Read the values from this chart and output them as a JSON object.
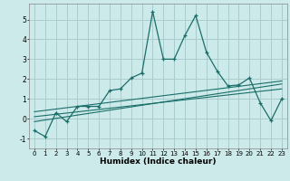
{
  "title": "",
  "xlabel": "Humidex (Indice chaleur)",
  "ylabel": "",
  "bg_color": "#cceaea",
  "line_color": "#1a6e6a",
  "grid_color": "#aacccc",
  "xlim": [
    -0.5,
    23.5
  ],
  "ylim": [
    -1.5,
    5.8
  ],
  "yticks": [
    -1,
    0,
    1,
    2,
    3,
    4,
    5
  ],
  "xticks": [
    0,
    1,
    2,
    3,
    4,
    5,
    6,
    7,
    8,
    9,
    10,
    11,
    12,
    13,
    14,
    15,
    16,
    17,
    18,
    19,
    20,
    21,
    22,
    23
  ],
  "main_x": [
    0,
    1,
    2,
    3,
    4,
    5,
    6,
    7,
    8,
    9,
    10,
    11,
    12,
    13,
    14,
    15,
    16,
    17,
    18,
    19,
    20,
    21,
    22,
    23
  ],
  "main_y": [
    -0.6,
    -0.9,
    0.3,
    -0.15,
    0.62,
    0.62,
    0.62,
    1.42,
    1.5,
    2.05,
    2.3,
    5.4,
    3.0,
    3.0,
    4.2,
    5.2,
    3.35,
    2.4,
    1.65,
    1.7,
    2.05,
    0.8,
    -0.1,
    1.0
  ],
  "line2_x": [
    0,
    23
  ],
  "line2_y": [
    -0.15,
    1.75
  ],
  "line3_x": [
    0,
    23
  ],
  "line3_y": [
    0.1,
    1.5
  ],
  "line4_x": [
    0,
    23
  ],
  "line4_y": [
    0.35,
    1.9
  ]
}
